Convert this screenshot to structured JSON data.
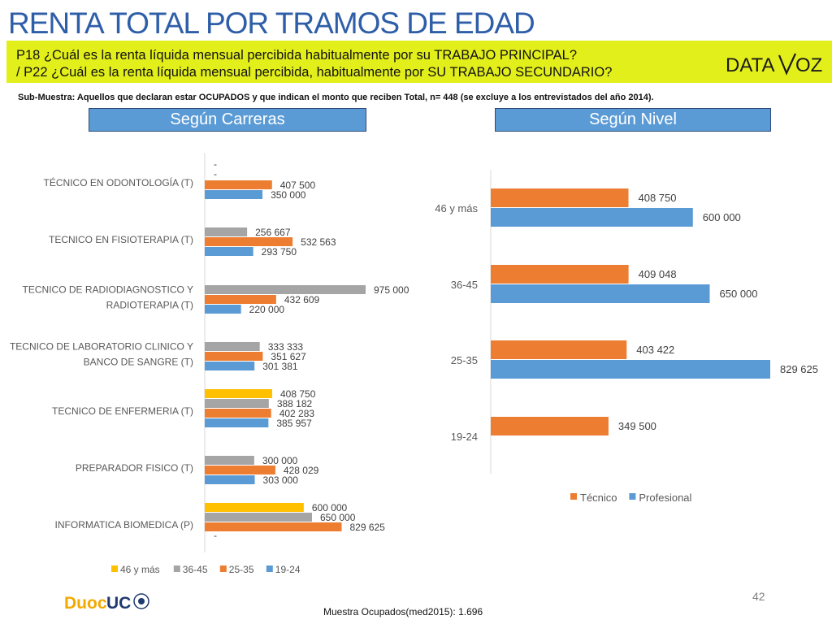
{
  "title": "RENTA TOTAL POR TRAMOS DE EDAD",
  "question_1": "P18 ¿Cuál es la renta líquida mensual percibida habitualmente por su TRABAJO PRINCIPAL?",
  "question_2": "/ P22 ¿Cuál es la  renta líquida mensual percibida, habitualmente por  SU TRABAJO SECUNDARIO?",
  "logo_text": "DATA VOZ",
  "submuestra": "Sub-Muestra: Aquellos que declaran estar OCUPADOS y que indican el monto que reciben Total, n= 448 (se excluye a los entrevistados del año 2014).",
  "left_header": "Según Carreras",
  "right_header": "Según Nivel",
  "page_number": "42",
  "footer_text": "Muestra Ocupados(med2015): 1.696",
  "footer_logo": "DuocUC",
  "colors": {
    "46 y más": "#ffc000",
    "36-45": "#a5a5a5",
    "25-35": "#ed7d31",
    "19-24": "#5b9bd5",
    "Técnico": "#ed7d31",
    "Profesional": "#5b9bd5",
    "brand_blue": "#2e5ea8",
    "band_yellow": "#e3ef1b"
  },
  "chart_data": [
    {
      "type": "bar",
      "orientation": "horizontal",
      "categories": [
        "TÉCNICO EN ODONTOLOGÍA (T)",
        "TECNICO EN FISIOTERAPIA (T)",
        "TECNICO DE RADIODIAGNOSTICO Y RADIOTERAPIA (T)",
        "TECNICO DE LABORATORIO CLINICO Y BANCO DE SANGRE (T)",
        "TECNICO DE ENFERMERIA (T)",
        "PREPARADOR FISICO (T)",
        "INFORMATICA BIOMEDICA (P)"
      ],
      "series": [
        {
          "name": "46 y más",
          "values": [
            null,
            null,
            null,
            null,
            408750,
            null,
            600000
          ],
          "labels": [
            "-",
            "",
            "",
            "",
            "408 750",
            "",
            "600 000"
          ]
        },
        {
          "name": "36-45",
          "values": [
            null,
            256667,
            975000,
            333333,
            388182,
            300000,
            650000
          ],
          "labels": [
            "-",
            "256 667",
            "975 000",
            "333 333",
            "388 182",
            "300 000",
            "650 000"
          ]
        },
        {
          "name": "25-35",
          "values": [
            407500,
            532563,
            432609,
            351627,
            402283,
            428029,
            829625
          ],
          "labels": [
            "407 500",
            "532 563",
            "432 609",
            "351 627",
            "402 283",
            "428 029",
            "829 625"
          ]
        },
        {
          "name": "19-24",
          "values": [
            350000,
            293750,
            220000,
            301381,
            385957,
            303000,
            null
          ],
          "labels": [
            "350 000",
            "293 750",
            "220 000",
            "301 381",
            "385 957",
            "303 000",
            "-"
          ]
        }
      ],
      "legend": "bottom",
      "grid": false
    },
    {
      "type": "bar",
      "orientation": "horizontal",
      "categories": [
        "46 y más",
        "36-45",
        "25-35",
        "19-24"
      ],
      "series": [
        {
          "name": "Técnico",
          "values": [
            408750,
            409048,
            403422,
            349500
          ],
          "labels": [
            "408 750",
            "409 048",
            "403 422",
            "349 500"
          ]
        },
        {
          "name": "Profesional",
          "values": [
            600000,
            650000,
            829625,
            null
          ],
          "labels": [
            "600 000",
            "650 000",
            "829 625",
            ""
          ]
        }
      ],
      "legend": "bottom",
      "grid": false
    }
  ]
}
